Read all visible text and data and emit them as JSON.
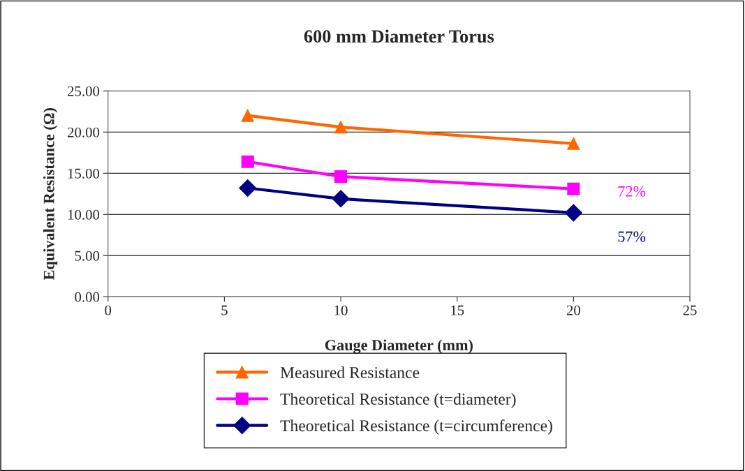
{
  "chart_data": {
    "type": "line",
    "title": "600 mm Diameter Torus",
    "xlabel": "Gauge Diameter (mm)",
    "ylabel": "Equivalent Resistance (Ω)",
    "x": [
      6,
      10,
      20
    ],
    "series": [
      {
        "name": "Measured Resistance",
        "color": "#ff6600",
        "marker": "triangle",
        "values": [
          22.0,
          20.6,
          18.6
        ]
      },
      {
        "name": "Theoretical Resistance (t=diameter)",
        "color": "#ff00ff",
        "marker": "square",
        "values": [
          16.4,
          14.6,
          13.1
        ]
      },
      {
        "name": "Theoretical Resistance (t=circumference)",
        "color": "#000080",
        "marker": "diamond",
        "values": [
          13.2,
          11.9,
          10.2
        ]
      }
    ],
    "annotations": [
      "72%",
      "57%"
    ],
    "xlim": [
      0,
      25
    ],
    "xticks": [
      0,
      5,
      10,
      15,
      20,
      25
    ],
    "ylim": [
      0,
      25
    ],
    "yticks": [
      {
        "value": 0,
        "label": "0.00"
      },
      {
        "value": 5,
        "label": "5.00"
      },
      {
        "value": 10,
        "label": "10.00"
      },
      {
        "value": 15,
        "label": "15.00"
      },
      {
        "value": 20,
        "label": "20.00"
      },
      {
        "value": 25,
        "label": "25.00"
      }
    ],
    "grid": "y",
    "legend": "bottom",
    "line_style": "solid"
  }
}
